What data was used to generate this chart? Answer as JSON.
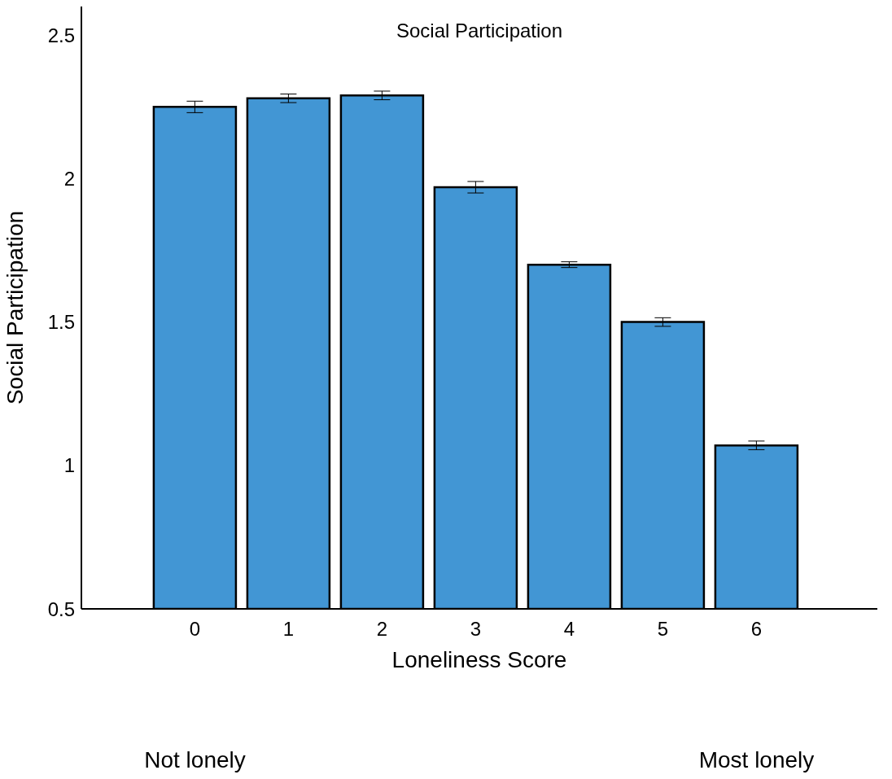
{
  "chart_data": {
    "type": "bar",
    "title": "Social Participation",
    "xlabel": "Loneliness Score",
    "ylabel": "Social Participation",
    "categories": [
      "0",
      "1",
      "2",
      "3",
      "4",
      "5",
      "6"
    ],
    "values": [
      2.25,
      2.28,
      2.29,
      1.97,
      1.7,
      1.5,
      1.07
    ],
    "errors": [
      0.02,
      0.015,
      0.015,
      0.02,
      0.01,
      0.015,
      0.015
    ],
    "color": "#4296d4",
    "ylim": [
      0.5,
      2.6
    ],
    "yticks": [
      0.5,
      1,
      1.5,
      2,
      2.5
    ],
    "grid": false,
    "annotations": [
      "Not lonely",
      "Most lonely"
    ]
  }
}
